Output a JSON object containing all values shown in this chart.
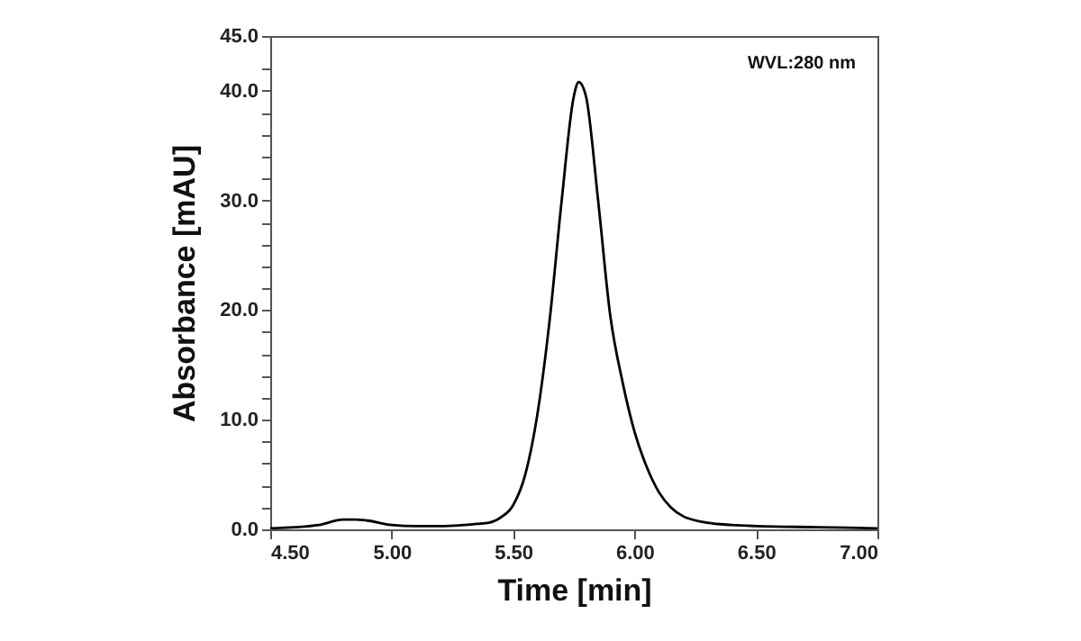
{
  "chart_data": {
    "type": "line",
    "xlabel": "Time [min]",
    "ylabel": "Absorbance [mAU]",
    "annotations": [
      "WVL:280 nm"
    ],
    "xlim": [
      4.5,
      7.0
    ],
    "xticks": [
      {
        "value": 4.5,
        "label": "4.50"
      },
      {
        "value": 5.0,
        "label": "5.00"
      },
      {
        "value": 5.5,
        "label": "5.50"
      },
      {
        "value": 6.0,
        "label": "6.00"
      },
      {
        "value": 6.5,
        "label": "6.50"
      },
      {
        "value": 7.0,
        "label": "7.00"
      }
    ],
    "ylim": [
      0,
      45
    ],
    "yticks": [
      {
        "value": 0,
        "label": "0.0"
      },
      {
        "value": 2,
        "label": null
      },
      {
        "value": 4,
        "label": null
      },
      {
        "value": 6,
        "label": null
      },
      {
        "value": 8,
        "label": null
      },
      {
        "value": 10,
        "label": "10.0"
      },
      {
        "value": 12,
        "label": null
      },
      {
        "value": 14,
        "label": null
      },
      {
        "value": 16,
        "label": null
      },
      {
        "value": 18,
        "label": null
      },
      {
        "value": 20,
        "label": "20.0"
      },
      {
        "value": 22,
        "label": null
      },
      {
        "value": 24,
        "label": null
      },
      {
        "value": 26,
        "label": null
      },
      {
        "value": 28,
        "label": null
      },
      {
        "value": 30,
        "label": "30.0"
      },
      {
        "value": 32,
        "label": null
      },
      {
        "value": 34,
        "label": null
      },
      {
        "value": 36,
        "label": null
      },
      {
        "value": 38,
        "label": null
      },
      {
        "value": 40,
        "label": "40.0"
      },
      {
        "value": 42,
        "label": null
      },
      {
        "value": 45,
        "label": "45.0"
      }
    ],
    "grid": false,
    "marker": "none",
    "line_style": "solid",
    "series": [
      {
        "color": "#000000",
        "x": [
          4.5,
          4.6,
          4.7,
          4.8,
          4.85,
          4.9,
          5.0,
          5.1,
          5.2,
          5.3,
          5.35,
          5.4,
          5.45,
          5.5,
          5.55,
          5.6,
          5.65,
          5.7,
          5.75,
          5.77,
          5.8,
          5.85,
          5.9,
          5.95,
          6.0,
          6.05,
          6.1,
          6.15,
          6.2,
          6.3,
          6.4,
          6.5,
          6.75,
          7.0
        ],
        "values": [
          0.1,
          0.2,
          0.4,
          0.9,
          0.9,
          0.8,
          0.4,
          0.3,
          0.3,
          0.4,
          0.5,
          0.6,
          1.1,
          2.2,
          5,
          10.5,
          19,
          30,
          39.5,
          40.8,
          39.5,
          30,
          19.5,
          13.5,
          8.9,
          5.7,
          3.4,
          2.0,
          1.2,
          0.6,
          0.4,
          0.3,
          0.2,
          0.1
        ]
      }
    ]
  }
}
